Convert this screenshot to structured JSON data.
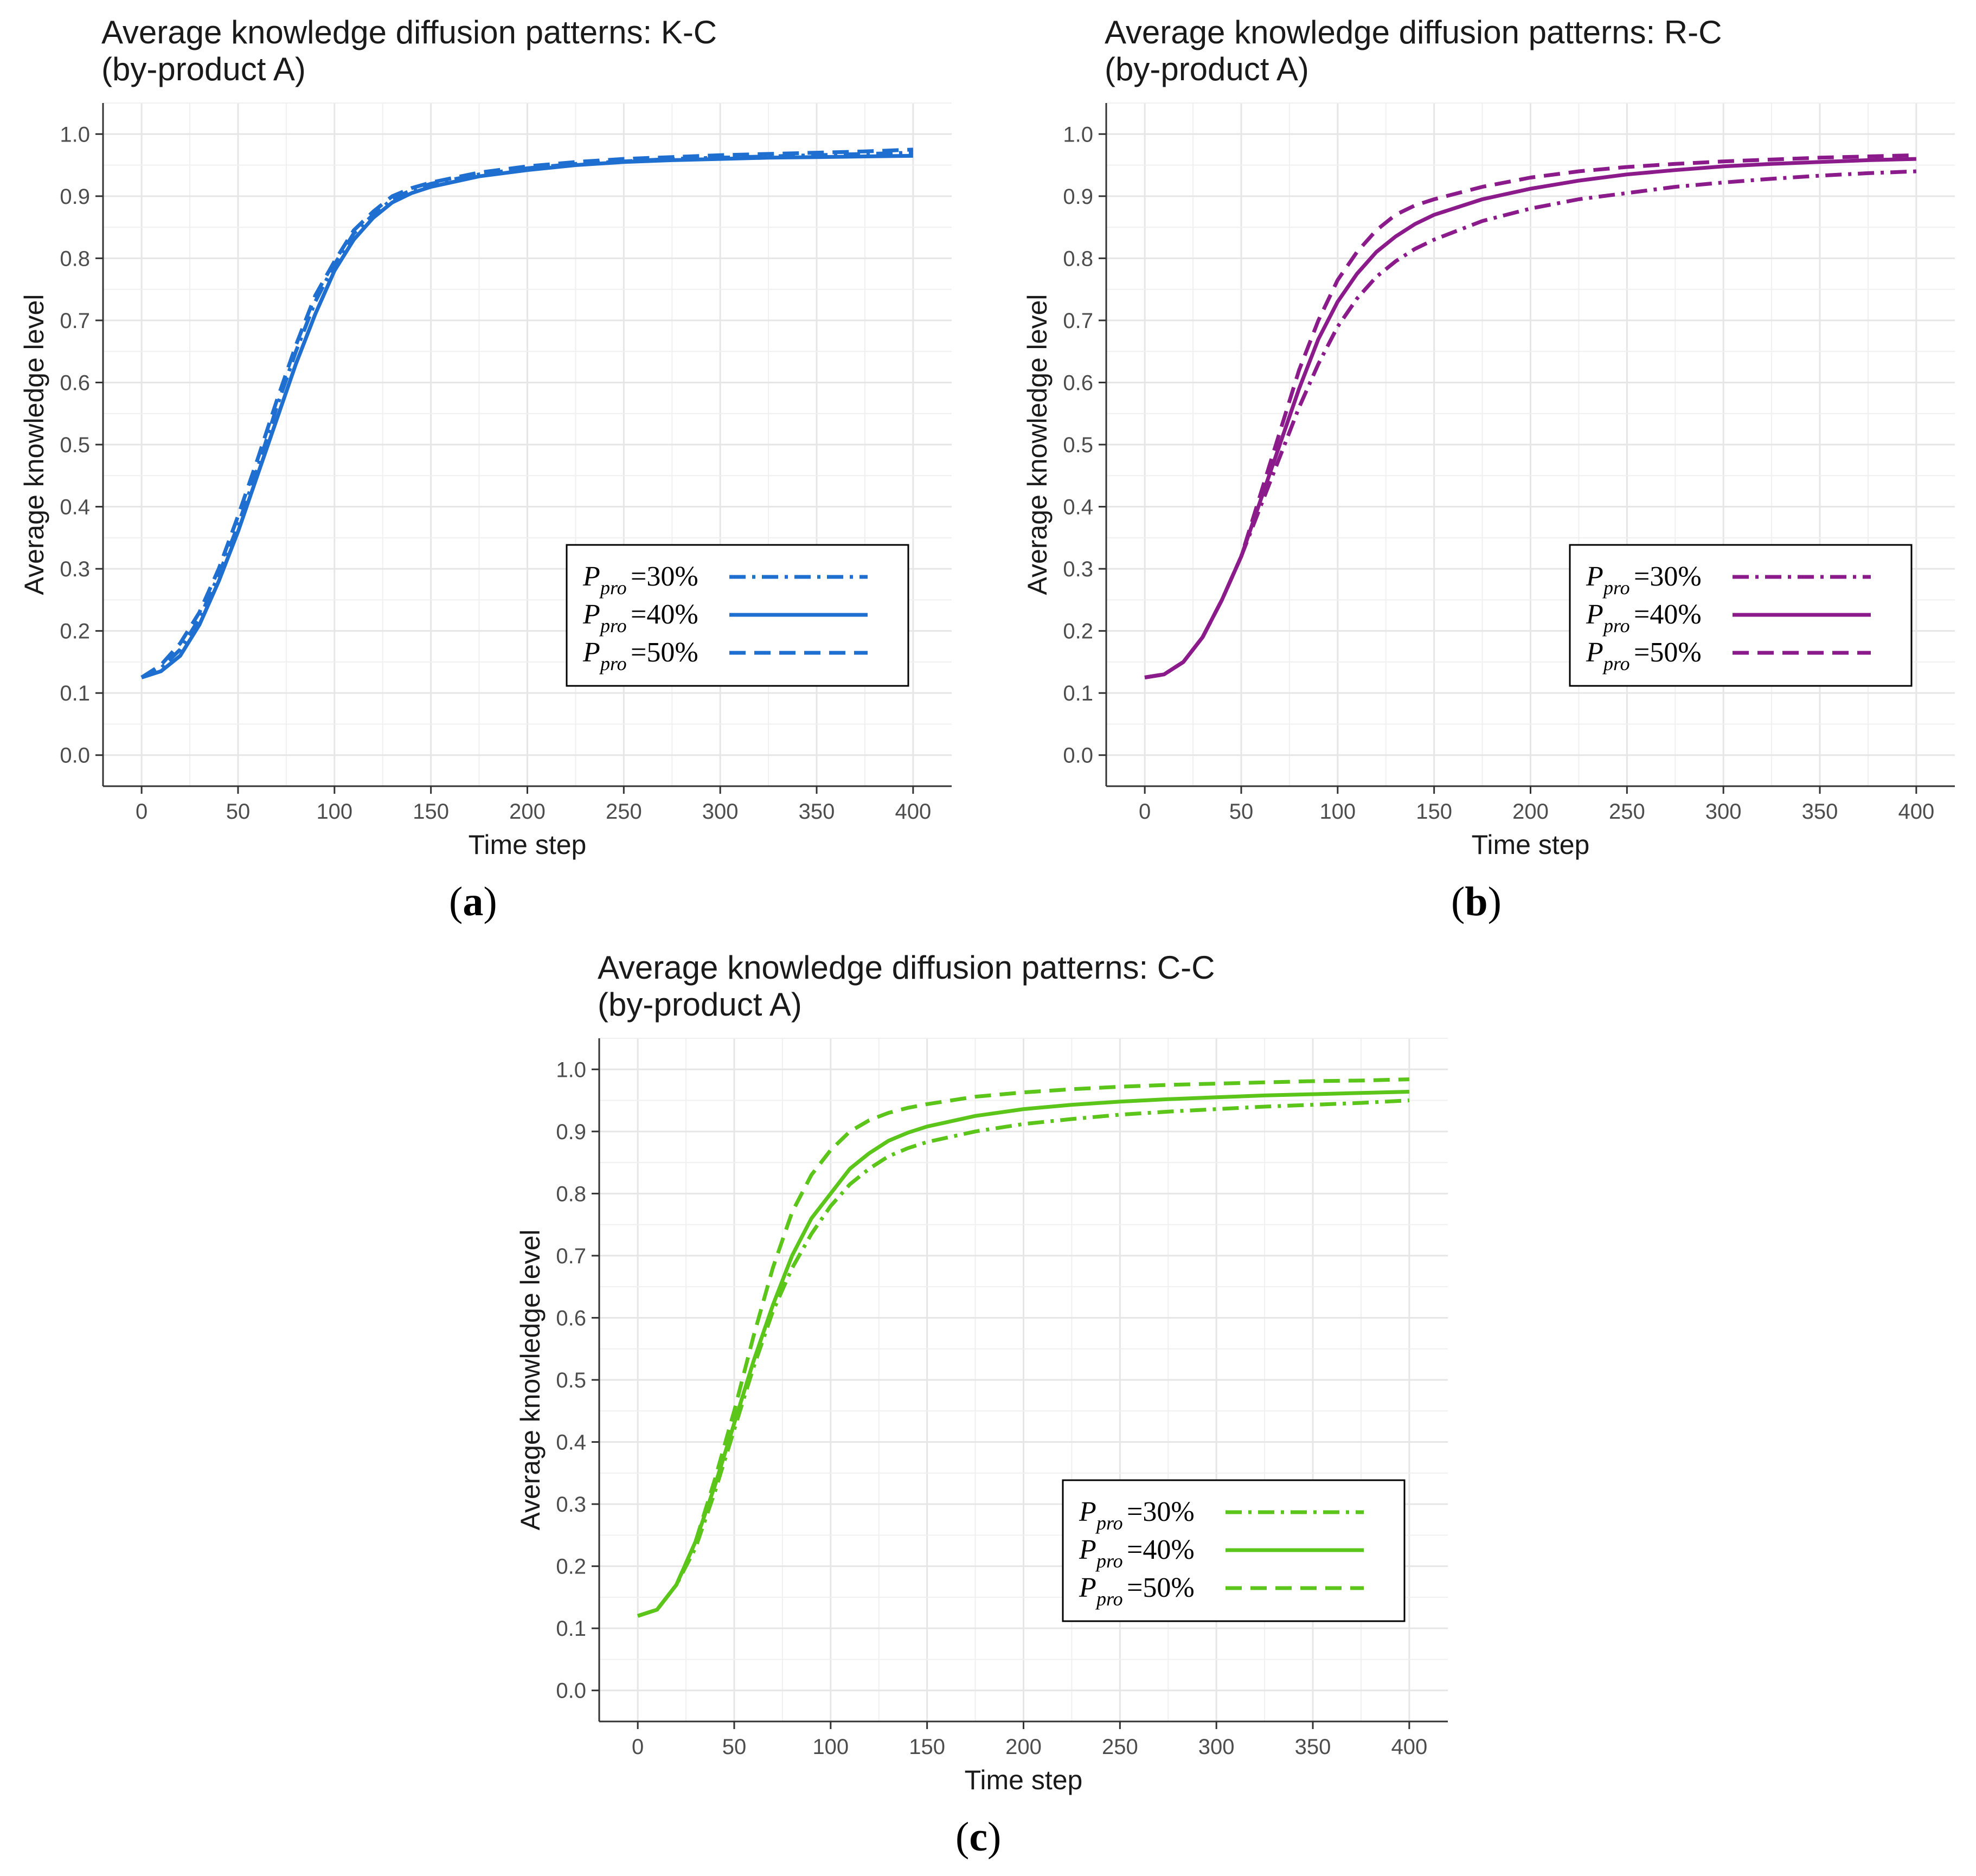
{
  "chart_data": [
    {
      "type": "line",
      "id": "a",
      "title_line1": "Average knowledge diffusion patterns: K-C",
      "title_line2": "(by-product A)",
      "xlabel": "Time step",
      "ylabel": "Average knowledge level",
      "xlim": [
        -20,
        420
      ],
      "ylim": [
        -0.05,
        1.05
      ],
      "xticks": [
        0,
        50,
        100,
        150,
        200,
        250,
        300,
        350,
        400
      ],
      "yticks": [
        0.0,
        0.1,
        0.2,
        0.3,
        0.4,
        0.5,
        0.6,
        0.7,
        0.8,
        0.9,
        1.0
      ],
      "grid": true,
      "color": "#1f6fd1",
      "legend_position": "bottom-right",
      "caption": "a",
      "series": [
        {
          "name": "P_pro=30%",
          "legend_main": "P",
          "legend_sub": "pro",
          "legend_value": "=30%",
          "dash": "dashdot",
          "x": [
            0,
            10,
            20,
            30,
            40,
            50,
            60,
            70,
            80,
            90,
            100,
            110,
            120,
            130,
            140,
            150,
            175,
            200,
            225,
            250,
            275,
            300,
            325,
            350,
            375,
            400
          ],
          "y": [
            0.125,
            0.14,
            0.17,
            0.22,
            0.29,
            0.37,
            0.46,
            0.56,
            0.65,
            0.73,
            0.79,
            0.84,
            0.87,
            0.895,
            0.91,
            0.92,
            0.935,
            0.945,
            0.952,
            0.956,
            0.96,
            0.962,
            0.964,
            0.966,
            0.968,
            0.97
          ]
        },
        {
          "name": "P_pro=40%",
          "legend_main": "P",
          "legend_sub": "pro",
          "legend_value": "=40%",
          "dash": "solid",
          "x": [
            0,
            10,
            20,
            30,
            40,
            50,
            60,
            70,
            80,
            90,
            100,
            110,
            120,
            130,
            140,
            150,
            175,
            200,
            225,
            250,
            275,
            300,
            325,
            350,
            375,
            400
          ],
          "y": [
            0.125,
            0.135,
            0.16,
            0.21,
            0.28,
            0.36,
            0.45,
            0.54,
            0.63,
            0.71,
            0.78,
            0.83,
            0.865,
            0.89,
            0.905,
            0.915,
            0.932,
            0.942,
            0.95,
            0.955,
            0.958,
            0.96,
            0.962,
            0.963,
            0.964,
            0.965
          ]
        },
        {
          "name": "P_pro=50%",
          "legend_main": "P",
          "legend_sub": "pro",
          "legend_value": "=50%",
          "dash": "dashed",
          "x": [
            0,
            10,
            20,
            30,
            40,
            50,
            60,
            70,
            80,
            90,
            100,
            110,
            120,
            130,
            140,
            150,
            175,
            200,
            225,
            250,
            275,
            300,
            325,
            350,
            375,
            400
          ],
          "y": [
            0.125,
            0.145,
            0.18,
            0.23,
            0.3,
            0.385,
            0.475,
            0.57,
            0.66,
            0.74,
            0.795,
            0.845,
            0.875,
            0.9,
            0.913,
            0.922,
            0.938,
            0.948,
            0.955,
            0.96,
            0.963,
            0.966,
            0.968,
            0.97,
            0.972,
            0.975
          ]
        }
      ]
    },
    {
      "type": "line",
      "id": "b",
      "title_line1": "Average knowledge diffusion patterns: R-C",
      "title_line2": "(by-product A)",
      "xlabel": "Time step",
      "ylabel": "Average knowledge level",
      "xlim": [
        -20,
        420
      ],
      "ylim": [
        -0.05,
        1.05
      ],
      "xticks": [
        0,
        50,
        100,
        150,
        200,
        250,
        300,
        350,
        400
      ],
      "yticks": [
        0.0,
        0.1,
        0.2,
        0.3,
        0.4,
        0.5,
        0.6,
        0.7,
        0.8,
        0.9,
        1.0
      ],
      "grid": true,
      "color": "#8b1a8b",
      "legend_position": "bottom-right",
      "caption": "b",
      "series": [
        {
          "name": "P_pro=30%",
          "legend_main": "P",
          "legend_sub": "pro",
          "legend_value": "=30%",
          "dash": "dashdot",
          "x": [
            0,
            10,
            20,
            30,
            40,
            50,
            60,
            70,
            80,
            90,
            100,
            110,
            120,
            130,
            140,
            150,
            175,
            200,
            225,
            250,
            275,
            300,
            325,
            350,
            375,
            400
          ],
          "y": [
            0.125,
            0.13,
            0.15,
            0.19,
            0.25,
            0.32,
            0.4,
            0.48,
            0.56,
            0.63,
            0.69,
            0.735,
            0.77,
            0.795,
            0.815,
            0.83,
            0.86,
            0.88,
            0.895,
            0.905,
            0.915,
            0.922,
            0.928,
            0.933,
            0.937,
            0.94
          ]
        },
        {
          "name": "P_pro=40%",
          "legend_main": "P",
          "legend_sub": "pro",
          "legend_value": "=40%",
          "dash": "solid",
          "x": [
            0,
            10,
            20,
            30,
            40,
            50,
            60,
            70,
            80,
            90,
            100,
            110,
            120,
            130,
            140,
            150,
            175,
            200,
            225,
            250,
            275,
            300,
            325,
            350,
            375,
            400
          ],
          "y": [
            0.125,
            0.13,
            0.15,
            0.19,
            0.25,
            0.32,
            0.41,
            0.5,
            0.59,
            0.67,
            0.73,
            0.775,
            0.81,
            0.835,
            0.855,
            0.87,
            0.895,
            0.912,
            0.925,
            0.935,
            0.942,
            0.948,
            0.952,
            0.955,
            0.958,
            0.96
          ]
        },
        {
          "name": "P_pro=50%",
          "legend_main": "P",
          "legend_sub": "pro",
          "legend_value": "=50%",
          "dash": "dashed",
          "x": [
            0,
            10,
            20,
            30,
            40,
            50,
            60,
            70,
            80,
            90,
            100,
            110,
            120,
            130,
            140,
            150,
            175,
            200,
            225,
            250,
            275,
            300,
            325,
            350,
            375,
            400
          ],
          "y": [
            0.125,
            0.13,
            0.15,
            0.19,
            0.25,
            0.32,
            0.42,
            0.52,
            0.62,
            0.7,
            0.765,
            0.81,
            0.845,
            0.87,
            0.885,
            0.895,
            0.915,
            0.93,
            0.94,
            0.947,
            0.952,
            0.956,
            0.959,
            0.962,
            0.964,
            0.966
          ]
        }
      ]
    },
    {
      "type": "line",
      "id": "c",
      "title_line1": "Average knowledge diffusion patterns: C-C",
      "title_line2": "(by-product A)",
      "xlabel": "Time step",
      "ylabel": "Average knowledge level",
      "xlim": [
        -20,
        420
      ],
      "ylim": [
        -0.05,
        1.05
      ],
      "xticks": [
        0,
        50,
        100,
        150,
        200,
        250,
        300,
        350,
        400
      ],
      "yticks": [
        0.0,
        0.1,
        0.2,
        0.3,
        0.4,
        0.5,
        0.6,
        0.7,
        0.8,
        0.9,
        1.0
      ],
      "grid": true,
      "color": "#5cc51a",
      "legend_position": "bottom-right",
      "caption": "c",
      "series": [
        {
          "name": "P_pro=30%",
          "legend_main": "P",
          "legend_sub": "pro",
          "legend_value": "=30%",
          "dash": "dashdot",
          "x": [
            0,
            10,
            20,
            30,
            40,
            50,
            60,
            70,
            80,
            90,
            100,
            110,
            120,
            130,
            140,
            150,
            175,
            200,
            225,
            250,
            275,
            300,
            325,
            350,
            375,
            400
          ],
          "y": [
            0.12,
            0.13,
            0.17,
            0.23,
            0.32,
            0.42,
            0.52,
            0.61,
            0.68,
            0.735,
            0.78,
            0.815,
            0.84,
            0.86,
            0.873,
            0.883,
            0.9,
            0.912,
            0.92,
            0.927,
            0.932,
            0.936,
            0.94,
            0.943,
            0.946,
            0.95
          ]
        },
        {
          "name": "P_pro=40%",
          "legend_main": "P",
          "legend_sub": "pro",
          "legend_value": "=40%",
          "dash": "solid",
          "x": [
            0,
            10,
            20,
            30,
            40,
            50,
            60,
            70,
            80,
            90,
            100,
            110,
            120,
            130,
            140,
            150,
            175,
            200,
            225,
            250,
            275,
            300,
            325,
            350,
            375,
            400
          ],
          "y": [
            0.12,
            0.13,
            0.17,
            0.24,
            0.33,
            0.43,
            0.53,
            0.62,
            0.7,
            0.76,
            0.8,
            0.84,
            0.865,
            0.885,
            0.898,
            0.908,
            0.925,
            0.936,
            0.943,
            0.948,
            0.952,
            0.955,
            0.958,
            0.96,
            0.962,
            0.964
          ]
        },
        {
          "name": "P_pro=50%",
          "legend_main": "P",
          "legend_sub": "pro",
          "legend_value": "=50%",
          "dash": "dashed",
          "x": [
            0,
            10,
            20,
            30,
            40,
            50,
            60,
            70,
            80,
            90,
            100,
            110,
            120,
            130,
            140,
            150,
            175,
            200,
            225,
            250,
            275,
            300,
            325,
            350,
            375,
            400
          ],
          "y": [
            0.12,
            0.13,
            0.17,
            0.24,
            0.34,
            0.45,
            0.57,
            0.68,
            0.77,
            0.83,
            0.87,
            0.9,
            0.918,
            0.93,
            0.938,
            0.944,
            0.956,
            0.963,
            0.968,
            0.972,
            0.975,
            0.977,
            0.979,
            0.981,
            0.982,
            0.984
          ]
        }
      ]
    }
  ]
}
